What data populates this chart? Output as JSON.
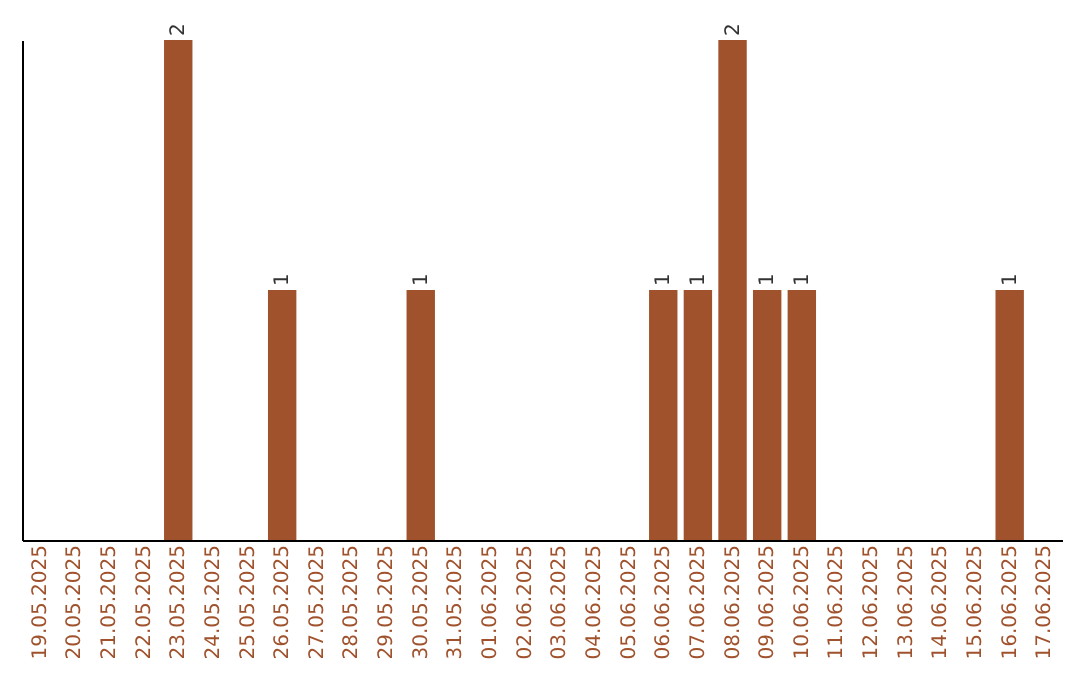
{
  "chart_data": {
    "type": "bar",
    "categories": [
      "19.05.2025",
      "20.05.2025",
      "21.05.2025",
      "22.05.2025",
      "23.05.2025",
      "24.05.2025",
      "25.05.2025",
      "26.05.2025",
      "27.05.2025",
      "28.05.2025",
      "29.05.2025",
      "30.05.2025",
      "31.05.2025",
      "01.06.2025",
      "02.06.2025",
      "03.06.2025",
      "04.06.2025",
      "05.06.2025",
      "06.06.2025",
      "07.06.2025",
      "08.06.2025",
      "09.06.2025",
      "10.06.2025",
      "11.06.2025",
      "12.06.2025",
      "13.06.2025",
      "14.06.2025",
      "15.06.2025",
      "16.06.2025",
      "17.06.2025"
    ],
    "values": [
      0,
      0,
      0,
      0,
      2,
      0,
      0,
      1,
      0,
      0,
      0,
      1,
      0,
      0,
      0,
      0,
      0,
      0,
      1,
      1,
      2,
      1,
      1,
      0,
      0,
      0,
      0,
      0,
      1,
      0
    ],
    "value_labels": [
      null,
      null,
      null,
      null,
      "2",
      null,
      null,
      "1",
      null,
      null,
      null,
      "1",
      null,
      null,
      null,
      null,
      null,
      null,
      "1",
      "1",
      "2",
      "1",
      "1",
      null,
      null,
      null,
      null,
      null,
      "1",
      null
    ],
    "color": "#a0522d",
    "ylim": [
      0,
      2
    ],
    "tick_labels": "x",
    "grid": false
  }
}
